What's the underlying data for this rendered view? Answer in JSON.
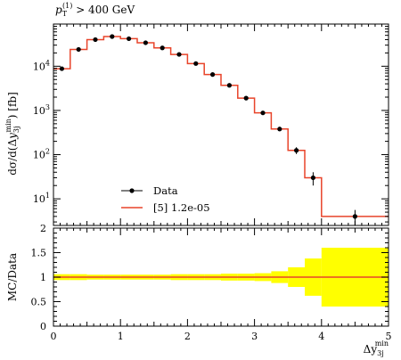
{
  "chart_data": {
    "type": "line",
    "annotation": {
      "prefix": "p",
      "sub": "T",
      "sup": "(1)",
      "rest": " > 400 GeV"
    },
    "xlabel": {
      "main": "Δy",
      "sub": "3j",
      "sup": "min"
    },
    "ylabel": "dσ/d(Δy3j^min) [fb]",
    "ratio_ylabel": "MC/Data",
    "x_range": [
      0,
      5
    ],
    "y_log": true,
    "y_range": [
      2.5,
      90000
    ],
    "ratio_range": [
      0,
      2
    ],
    "x_ticks": [
      "0",
      "1",
      "2",
      "3",
      "4",
      "5"
    ],
    "y_ticks": [
      {
        "value": 10,
        "label": "10",
        "sup": "1"
      },
      {
        "value": 100,
        "label": "10",
        "sup": "2"
      },
      {
        "value": 1000,
        "label": "10",
        "sup": "3"
      },
      {
        "value": 10000,
        "label": "10",
        "sup": "4"
      }
    ],
    "ratio_ticks": [
      "0",
      "0.5",
      "1",
      "1.5",
      "2"
    ],
    "legend": {
      "placement": "bottom-left",
      "data_label": "Data",
      "mc_label": "[5] 1.2e-05"
    },
    "colors": {
      "data": "#000000",
      "mc": "#e8442a",
      "band": "#ffff00"
    },
    "bins": [
      {
        "lo": 0.0,
        "hi": 0.25,
        "data": 8800,
        "err": 400,
        "mc": 8800,
        "band": 0.06
      },
      {
        "lo": 0.25,
        "hi": 0.5,
        "data": 24000,
        "err": 800,
        "mc": 24000,
        "band": 0.06
      },
      {
        "lo": 0.5,
        "hi": 0.75,
        "data": 40000,
        "err": 1200,
        "mc": 40000,
        "band": 0.05
      },
      {
        "lo": 0.75,
        "hi": 1.0,
        "data": 47000,
        "err": 1400,
        "mc": 47000,
        "band": 0.05
      },
      {
        "lo": 1.0,
        "hi": 1.25,
        "data": 42000,
        "err": 1300,
        "mc": 42000,
        "band": 0.05
      },
      {
        "lo": 1.25,
        "hi": 1.5,
        "data": 34000,
        "err": 1100,
        "mc": 34000,
        "band": 0.05
      },
      {
        "lo": 1.5,
        "hi": 1.75,
        "data": 26000,
        "err": 900,
        "mc": 26000,
        "band": 0.05
      },
      {
        "lo": 1.75,
        "hi": 2.0,
        "data": 18500,
        "err": 700,
        "mc": 18500,
        "band": 0.06
      },
      {
        "lo": 2.0,
        "hi": 2.25,
        "data": 11500,
        "err": 500,
        "mc": 11500,
        "band": 0.06
      },
      {
        "lo": 2.25,
        "hi": 2.5,
        "data": 6500,
        "err": 300,
        "mc": 6500,
        "band": 0.06
      },
      {
        "lo": 2.5,
        "hi": 2.75,
        "data": 3700,
        "err": 200,
        "mc": 3700,
        "band": 0.07
      },
      {
        "lo": 2.75,
        "hi": 3.0,
        "data": 1900,
        "err": 120,
        "mc": 1900,
        "band": 0.07
      },
      {
        "lo": 3.0,
        "hi": 3.25,
        "data": 880,
        "err": 70,
        "mc": 880,
        "band": 0.08
      },
      {
        "lo": 3.25,
        "hi": 3.5,
        "data": 380,
        "err": 40,
        "mc": 380,
        "band": 0.12
      },
      {
        "lo": 3.5,
        "hi": 3.75,
        "data": 125,
        "err": 22,
        "mc": 125,
        "band": 0.2
      },
      {
        "lo": 3.75,
        "hi": 4.0,
        "data": 30,
        "err": 10,
        "mc": 30,
        "band": 0.38
      },
      {
        "lo": 4.0,
        "hi": 5.0,
        "data": 4,
        "err": 1.6,
        "mc": 4,
        "band": 0.6
      }
    ],
    "grid": false
  }
}
